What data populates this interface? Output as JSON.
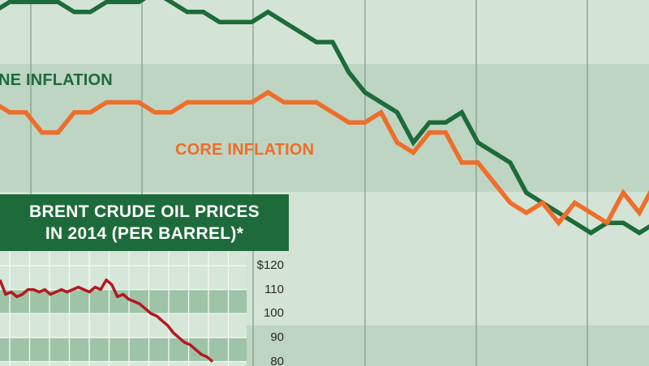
{
  "colors": {
    "background": "#d3e3d6",
    "band": "#bdd5c2",
    "grid": "#7d9a85",
    "headline": "#1d6b3a",
    "core": "#ee6e2a",
    "oil": "#b3191e",
    "inset_title_bg": "#1d6b3a"
  },
  "chart_data": [
    {
      "type": "line",
      "title": "",
      "series": [
        {
          "name": "HEADLINE INFLATION (partially visible: 'NE INFLATION')",
          "color": "#1d6b3a",
          "x": [
            0,
            1,
            2,
            3,
            4,
            5,
            6,
            7,
            8,
            9,
            10,
            11,
            12,
            13,
            14,
            15,
            16,
            17,
            18,
            19,
            20,
            21,
            22,
            23,
            24,
            25,
            26,
            27,
            28,
            29,
            30,
            31,
            32,
            33,
            34,
            35,
            36,
            37,
            38,
            39,
            40,
            41
          ],
          "values": [
            3.3,
            3.4,
            3.4,
            3.4,
            3.4,
            3.3,
            3.3,
            3.4,
            3.4,
            3.4,
            3.5,
            3.4,
            3.3,
            3.3,
            3.2,
            3.2,
            3.2,
            3.3,
            3.2,
            3.1,
            3.0,
            3.0,
            2.7,
            2.5,
            2.4,
            2.3,
            2.0,
            2.2,
            2.2,
            2.3,
            2.0,
            1.9,
            1.8,
            1.5,
            1.4,
            1.3,
            1.2,
            1.1,
            1.2,
            1.2,
            1.1,
            1.2
          ]
        },
        {
          "name": "CORE INFLATION",
          "color": "#ee6e2a",
          "x": [
            0,
            1,
            2,
            3,
            4,
            5,
            6,
            7,
            8,
            9,
            10,
            11,
            12,
            13,
            14,
            15,
            16,
            17,
            18,
            19,
            20,
            21,
            22,
            23,
            24,
            25,
            26,
            27,
            28,
            29,
            30,
            31,
            32,
            33,
            34,
            35,
            36,
            37,
            38,
            39,
            40,
            41
          ],
          "values": [
            2.4,
            2.3,
            2.3,
            2.1,
            2.1,
            2.3,
            2.3,
            2.4,
            2.4,
            2.4,
            2.3,
            2.3,
            2.4,
            2.4,
            2.4,
            2.4,
            2.4,
            2.5,
            2.4,
            2.4,
            2.4,
            2.3,
            2.2,
            2.2,
            2.3,
            2.0,
            1.9,
            2.1,
            2.1,
            1.8,
            1.8,
            1.6,
            1.4,
            1.3,
            1.4,
            1.2,
            1.4,
            1.3,
            1.2,
            1.5,
            1.3,
            1.6
          ]
        }
      ],
      "labels": {
        "headline": "NE INFLATION",
        "core": "CORE INFLATION"
      },
      "grid": true
    },
    {
      "type": "line",
      "title": "BRENT CRUDE OIL PRICES IN 2014 (PER BARREL)*",
      "title_lines": [
        "BRENT CRUDE OIL PRICES",
        "IN 2014 (PER BARREL)*"
      ],
      "ylabel": "",
      "ylim": [
        77.5,
        122
      ],
      "yticks": [
        "$120",
        "110",
        "100",
        "90",
        "80"
      ],
      "ytick_values": [
        120,
        110,
        100,
        90,
        80
      ],
      "series": [
        {
          "name": "Brent crude",
          "color": "#b3191e",
          "values": [
            114,
            108,
            109,
            107,
            108,
            110,
            110,
            109,
            110,
            108,
            109,
            110,
            109,
            110,
            111,
            110,
            109,
            111,
            110,
            114,
            112,
            107,
            108,
            106,
            105,
            104,
            102,
            100,
            99,
            97,
            95,
            92,
            90,
            88,
            87,
            85,
            83,
            82,
            80
          ]
        }
      ],
      "grid": true
    }
  ]
}
